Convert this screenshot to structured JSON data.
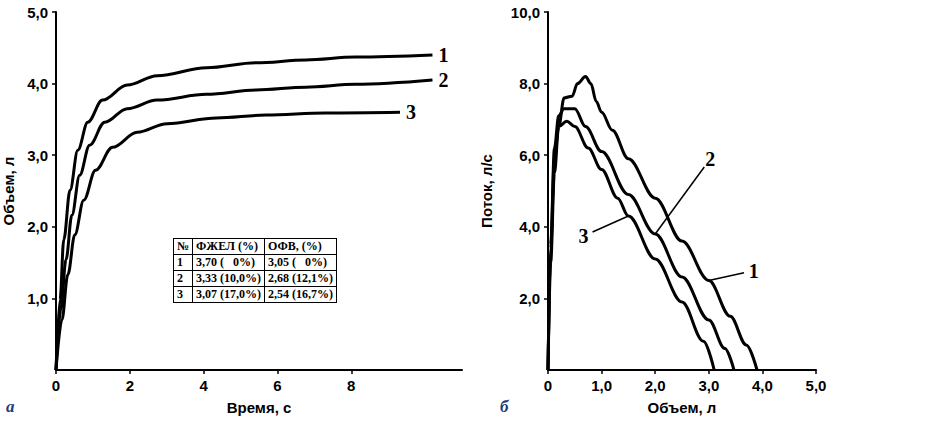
{
  "chart_data": [
    {
      "type": "line",
      "panel_label": "а",
      "x_label": "Время, с",
      "y_label": "Объем, л",
      "xlim": [
        0,
        11
      ],
      "xticks": [
        0,
        2,
        4,
        6,
        8
      ],
      "ylim": [
        0,
        5
      ],
      "yticks": [
        {
          "value": 1,
          "label": "1,0"
        },
        {
          "value": 2,
          "label": "2,0"
        },
        {
          "value": 3,
          "label": "3,0"
        },
        {
          "value": 4,
          "label": "4,0"
        },
        {
          "value": 5,
          "label": "5,0"
        }
      ],
      "grid": false,
      "series": [
        {
          "name": "1",
          "color": "#000000",
          "x": [
            0,
            0.11,
            0.21,
            0.38,
            0.59,
            0.86,
            1.26,
            1.93,
            2.74,
            4.08,
            5.42,
            6.77,
            8.11,
            10.2
          ],
          "values": [
            0,
            0.98,
            1.82,
            2.51,
            3.07,
            3.46,
            3.77,
            3.98,
            4.11,
            4.22,
            4.29,
            4.33,
            4.37,
            4.4
          ]
        },
        {
          "name": "2",
          "color": "#000000",
          "x": [
            0,
            0.13,
            0.27,
            0.43,
            0.64,
            0.91,
            1.32,
            1.93,
            2.74,
            4.08,
            5.42,
            6.77,
            8.11,
            10.2
          ],
          "values": [
            0,
            0.84,
            1.54,
            2.16,
            2.72,
            3.14,
            3.46,
            3.65,
            3.77,
            3.85,
            3.91,
            3.95,
            3.99,
            4.05
          ]
        },
        {
          "name": "3",
          "color": "#000000",
          "x": [
            0,
            0.16,
            0.32,
            0.51,
            0.75,
            1.07,
            1.53,
            2.2,
            3.01,
            4.35,
            5.69,
            7.3,
            9.32
          ],
          "values": [
            0,
            0.7,
            1.33,
            1.89,
            2.37,
            2.79,
            3.11,
            3.32,
            3.44,
            3.52,
            3.56,
            3.59,
            3.6
          ]
        }
      ],
      "table": {
        "header": [
          "№",
          "ФЖЕЛ (%)",
          "ОФВ, (%)"
        ],
        "rows": [
          [
            "1",
            "3,70 (   0%)",
            "3,05 (   0%)"
          ],
          [
            "2",
            "3,33 (10,0%)",
            "2,68 (12,1%)"
          ],
          [
            "3",
            "3,07 (17,0%)",
            "2,54 (16,7%)"
          ]
        ]
      }
    },
    {
      "type": "line",
      "panel_label": "б",
      "x_label": "Объем, л",
      "y_label": "Поток, л/с",
      "xlim": [
        0,
        5
      ],
      "xticks": [
        0,
        {
          "value": 1,
          "label": "1,0"
        },
        {
          "value": 2,
          "label": "2,0"
        },
        {
          "value": 3,
          "label": "3,0"
        },
        {
          "value": 4,
          "label": "4,0"
        },
        {
          "value": 5,
          "label": "5,0"
        }
      ],
      "ylim": [
        0,
        10
      ],
      "yticks": [
        {
          "value": 2,
          "label": "2,0"
        },
        {
          "value": 4,
          "label": "4,0"
        },
        {
          "value": 6,
          "label": "6,0"
        },
        {
          "value": 8,
          "label": "8,0"
        },
        {
          "value": 10,
          "label": "10,0"
        }
      ],
      "grid": false,
      "series": [
        {
          "name": "1",
          "color": "#000000",
          "x": [
            0,
            0.05,
            0.12,
            0.2,
            0.3,
            0.45,
            0.55,
            0.7,
            0.8,
            0.9,
            1.0,
            1.2,
            1.5,
            2.0,
            2.5,
            3.0,
            3.4,
            3.7,
            3.9
          ],
          "values": [
            0,
            3.0,
            5.5,
            6.8,
            7.6,
            7.65,
            8.0,
            8.2,
            8.0,
            7.5,
            7.2,
            6.7,
            5.9,
            4.8,
            3.6,
            2.5,
            1.5,
            0.7,
            0
          ]
        },
        {
          "name": "2",
          "color": "#000000",
          "x": [
            0,
            0.05,
            0.12,
            0.2,
            0.3,
            0.5,
            0.7,
            1.0,
            1.5,
            2.0,
            2.5,
            3.0,
            3.3,
            3.47
          ],
          "values": [
            0,
            3.5,
            6.2,
            7.1,
            7.3,
            7.3,
            6.8,
            6.1,
            4.9,
            3.8,
            2.6,
            1.4,
            0.6,
            0
          ]
        },
        {
          "name": "3",
          "color": "#000000",
          "x": [
            0,
            0.05,
            0.12,
            0.2,
            0.35,
            0.5,
            0.75,
            1.0,
            1.3,
            1.5,
            2.0,
            2.5,
            2.9,
            3.1
          ],
          "values": [
            0,
            3.4,
            5.9,
            6.8,
            6.95,
            6.8,
            6.2,
            5.6,
            4.8,
            4.3,
            3.1,
            1.9,
            0.8,
            0
          ]
        }
      ]
    }
  ]
}
